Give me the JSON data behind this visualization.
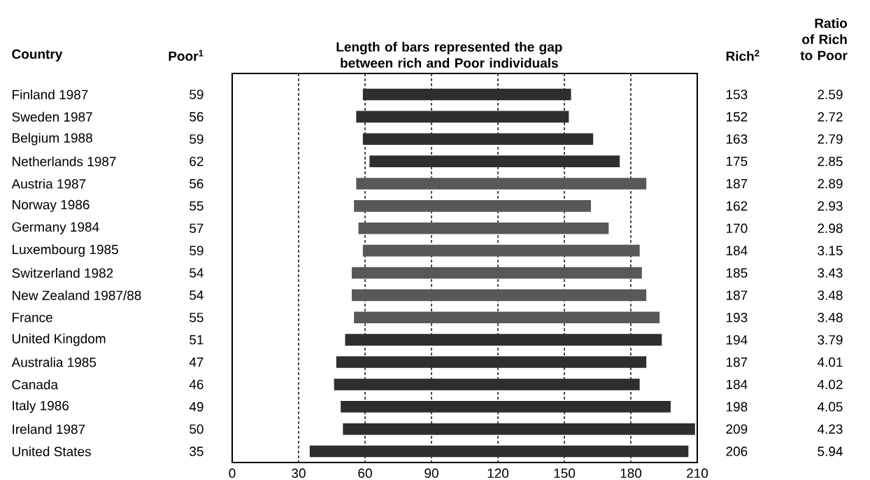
{
  "chart_data": {
    "type": "bar",
    "orientation": "horizontal",
    "title": "Length of bars represented the gap between rich and Poor individuals",
    "ylabel": "Country",
    "categories": [
      "Finland 1987",
      "Sweden 1987",
      "Belgium 1988",
      "Netherlands 1987",
      "Austria 1987",
      "Norway 1986",
      "Germany 1984",
      "Luxembourg 1985",
      "Switzerland 1982",
      "New Zealand 1987/88",
      "France",
      "United Kingdom",
      "Australia 1985",
      "Canada",
      "Italy 1986",
      "Ireland 1987",
      "United States"
    ],
    "base": [
      59,
      56,
      59,
      62,
      56,
      55,
      57,
      59,
      54,
      54,
      55,
      51,
      47,
      46,
      49,
      50,
      35
    ],
    "values": [
      94,
      96,
      104,
      113,
      131,
      107,
      113,
      125,
      131,
      133,
      138,
      143,
      140,
      138,
      149,
      159,
      171
    ],
    "value_labels": [
      "153",
      "152",
      "163",
      "175",
      "187",
      "162",
      "170",
      "184",
      "185",
      "187",
      "193",
      "194",
      "187",
      "184",
      "198",
      "209",
      "206"
    ],
    "colors": [
      "#2e2e2e",
      "#2e2e2e",
      "#2e2e2e",
      "#2e2e2e",
      "#585858",
      "#585858",
      "#585858",
      "#585858",
      "#585858",
      "#585858",
      "#585858",
      "#2e2e2e",
      "#2e2e2e",
      "#2e2e2e",
      "#2e2e2e",
      "#2e2e2e",
      "#2e2e2e"
    ],
    "xlim": [
      0,
      210
    ],
    "xticks": [
      0,
      30,
      60,
      90,
      120,
      150,
      180,
      210
    ],
    "grid": "x",
    "annotations": [
      "Poor$^{1}$",
      "Rich$^{2}$",
      "Ratio of Rich to Poor",
      "59",
      "56",
      "59",
      "62",
      "56",
      "55",
      "57",
      "59",
      "54",
      "54",
      "55",
      "51",
      "47",
      "46",
      "49",
      "50",
      "35",
      "2.59",
      "2.72",
      "2.79",
      "2.85",
      "2.89",
      "2.93",
      "2.98",
      "3.15",
      "3.43",
      "3.48",
      "3.48",
      "3.79",
      "4.01",
      "4.02",
      "4.05",
      "4.23",
      "5.94"
    ]
  }
}
